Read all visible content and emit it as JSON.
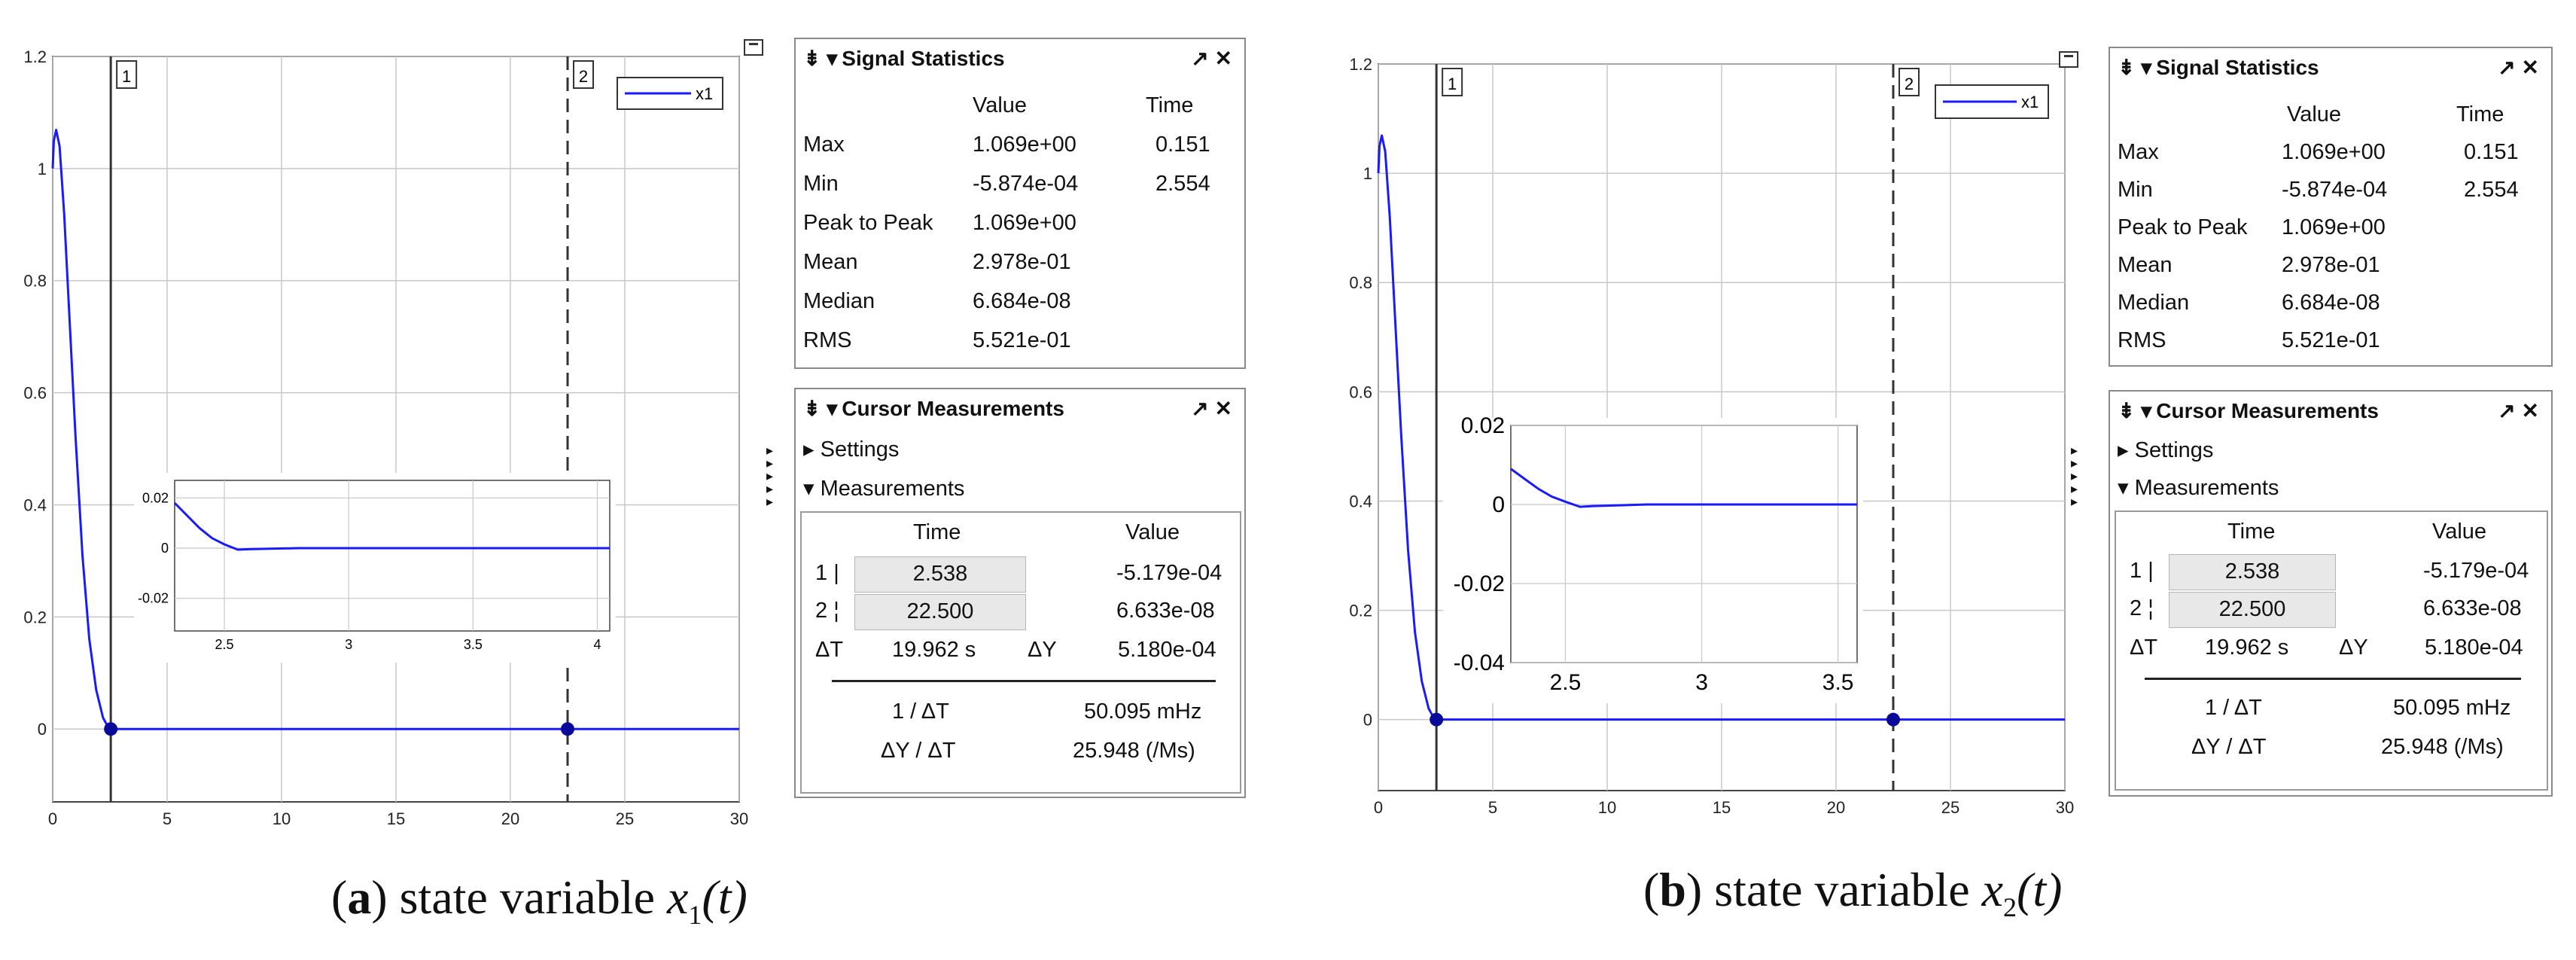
{
  "panels": [
    {
      "id": "a",
      "caption": {
        "letter": "a",
        "text": " state variable ",
        "var": "x",
        "sub": "1",
        "arg": "(t)"
      },
      "legend": "x1",
      "cursor_labels": [
        "1",
        "2"
      ],
      "stats": {
        "title": "Signal Statistics",
        "header_value": "Value",
        "header_time": "Time",
        "rows": [
          {
            "label": "Max",
            "value": "1.069e+00",
            "time": "0.151"
          },
          {
            "label": "Min",
            "value": "-5.874e-04",
            "time": "2.554"
          },
          {
            "label": "Peak to Peak",
            "value": "1.069e+00",
            "time": ""
          },
          {
            "label": "Mean",
            "value": "2.978e-01",
            "time": ""
          },
          {
            "label": "Median",
            "value": "6.684e-08",
            "time": ""
          },
          {
            "label": "RMS",
            "value": "5.521e-01",
            "time": ""
          }
        ]
      },
      "cursor": {
        "title": "Cursor Measurements",
        "settings": "Settings",
        "measurements": "Measurements",
        "header_time": "Time",
        "header_value": "Value",
        "rows": [
          {
            "idx": "1",
            "mark": "|",
            "time": "2.538",
            "value": "-5.179e-04"
          },
          {
            "idx": "2",
            "mark": "¦",
            "time": "22.500",
            "value": "6.633e-08"
          }
        ],
        "dt_label": "ΔT",
        "dt_value": "19.962 s",
        "dy_label": "ΔY",
        "dy_value": "5.180e-04",
        "inv_label": "1 / ΔT",
        "inv_value": "50.095 mHz",
        "slope_label": "ΔY / ΔT",
        "slope_value": "25.948 (/Ms)"
      }
    },
    {
      "id": "b",
      "caption": {
        "letter": "b",
        "text": " state variable ",
        "var": "x",
        "sub": "2",
        "arg": "(t)"
      },
      "legend": "x1",
      "cursor_labels": [
        "1",
        "2"
      ],
      "stats": {
        "title": "Signal Statistics",
        "header_value": "Value",
        "header_time": "Time",
        "rows": [
          {
            "label": "Max",
            "value": "1.069e+00",
            "time": "0.151"
          },
          {
            "label": "Min",
            "value": "-5.874e-04",
            "time": "2.554"
          },
          {
            "label": "Peak to Peak",
            "value": "1.069e+00",
            "time": ""
          },
          {
            "label": "Mean",
            "value": "2.978e-01",
            "time": ""
          },
          {
            "label": "Median",
            "value": "6.684e-08",
            "time": ""
          },
          {
            "label": "RMS",
            "value": "5.521e-01",
            "time": ""
          }
        ]
      },
      "cursor": {
        "title": "Cursor Measurements",
        "settings": "Settings",
        "measurements": "Measurements",
        "header_time": "Time",
        "header_value": "Value",
        "rows": [
          {
            "idx": "1",
            "mark": "|",
            "time": "2.538",
            "value": "-5.179e-04"
          },
          {
            "idx": "2",
            "mark": "¦",
            "time": "22.500",
            "value": "6.633e-08"
          }
        ],
        "dt_label": "ΔT",
        "dt_value": "19.962 s",
        "dy_label": "ΔY",
        "dy_value": "5.180e-04",
        "inv_label": "1 / ΔT",
        "inv_value": "50.095 mHz",
        "slope_label": "ΔY / ΔT",
        "slope_value": "25.948 (/Ms)"
      }
    }
  ],
  "chart_data": [
    {
      "type": "line",
      "panel": "a",
      "series": [
        {
          "name": "x1",
          "color": "#1a1aff",
          "x": [
            0,
            0.05,
            0.151,
            0.3,
            0.5,
            0.8,
            1.0,
            1.3,
            1.6,
            1.9,
            2.2,
            2.4,
            2.538,
            2.7,
            3.0,
            5,
            10,
            15,
            20,
            25,
            30
          ],
          "y": [
            1.0,
            1.05,
            1.069,
            1.04,
            0.92,
            0.68,
            0.52,
            0.31,
            0.16,
            0.07,
            0.02,
            0.005,
            0,
            0,
            0,
            0,
            0,
            0,
            0,
            0,
            0
          ]
        }
      ],
      "xlim": [
        0,
        30
      ],
      "ylim": [
        -0.13,
        1.2
      ],
      "xticks": [
        0,
        5,
        10,
        15,
        20,
        25,
        30
      ],
      "yticks": [
        0,
        0.2,
        0.4,
        0.6,
        0.8,
        1,
        1.2
      ],
      "xtick_labels": [
        "0",
        "5",
        "10",
        "15",
        "20",
        "25",
        "30"
      ],
      "ytick_labels": [
        "0",
        "0.2",
        "0.4",
        "0.6",
        "0.8",
        "1",
        "1.2"
      ],
      "cursors": [
        2.538,
        22.5
      ],
      "markers": [
        {
          "x": 2.538,
          "y": 0
        },
        {
          "x": 22.5,
          "y": 0
        }
      ],
      "grid": true,
      "legend": "top-right",
      "inset": {
        "xlim": [
          2.3,
          4.05
        ],
        "ylim": [
          -0.033,
          0.027
        ],
        "xticks": [
          2.5,
          3,
          3.5,
          4
        ],
        "yticks": [
          -0.02,
          0,
          0.02
        ],
        "xtick_labels": [
          "2.5",
          "3",
          "3.5",
          "4"
        ],
        "ytick_labels": [
          "-0.02",
          "0",
          "0.02"
        ],
        "x": [
          2.3,
          2.35,
          2.4,
          2.45,
          2.5,
          2.554,
          2.6,
          2.8,
          3.0,
          4.05
        ],
        "y": [
          0.018,
          0.013,
          0.008,
          0.004,
          0.0015,
          -0.0006,
          -0.0004,
          0,
          0,
          0
        ]
      }
    },
    {
      "type": "line",
      "panel": "b",
      "series": [
        {
          "name": "x1",
          "color": "#1a1aff",
          "x": [
            0,
            0.05,
            0.151,
            0.3,
            0.5,
            0.8,
            1.0,
            1.3,
            1.6,
            1.9,
            2.2,
            2.4,
            2.538,
            2.7,
            3.0,
            5,
            10,
            15,
            20,
            25,
            30
          ],
          "y": [
            1.0,
            1.05,
            1.069,
            1.04,
            0.92,
            0.68,
            0.52,
            0.31,
            0.16,
            0.07,
            0.02,
            0.005,
            0,
            0,
            0,
            0,
            0,
            0,
            0,
            0,
            0
          ]
        }
      ],
      "xlim": [
        0,
        30
      ],
      "ylim": [
        -0.13,
        1.2
      ],
      "xticks": [
        0,
        5,
        10,
        15,
        20,
        25,
        30
      ],
      "yticks": [
        0,
        0.2,
        0.4,
        0.6,
        0.8,
        1,
        1.2
      ],
      "xtick_labels": [
        "0",
        "5",
        "10",
        "15",
        "20",
        "25",
        "30"
      ],
      "ytick_labels": [
        "0",
        "0.2",
        "0.4",
        "0.6",
        "0.8",
        "1",
        "1.2"
      ],
      "cursors": [
        2.538,
        22.5
      ],
      "markers": [
        {
          "x": 2.538,
          "y": 0
        },
        {
          "x": 22.5,
          "y": 0
        }
      ],
      "grid": true,
      "legend": "top-right",
      "inset": {
        "xlim": [
          2.3,
          3.57
        ],
        "ylim": [
          -0.04,
          0.02
        ],
        "xticks": [
          2.5,
          3,
          3.5
        ],
        "yticks": [
          -0.04,
          -0.02,
          0,
          0.02
        ],
        "xtick_labels": [
          "2.5",
          "3",
          "3.5"
        ],
        "ytick_labels": [
          "-0.04",
          "-0.02",
          "0",
          "0.02"
        ],
        "x": [
          2.3,
          2.35,
          2.4,
          2.45,
          2.5,
          2.554,
          2.6,
          2.8,
          3.0,
          3.57
        ],
        "y": [
          0.009,
          0.0065,
          0.004,
          0.002,
          0.0007,
          -0.0006,
          -0.0004,
          0,
          0,
          0
        ]
      }
    }
  ]
}
